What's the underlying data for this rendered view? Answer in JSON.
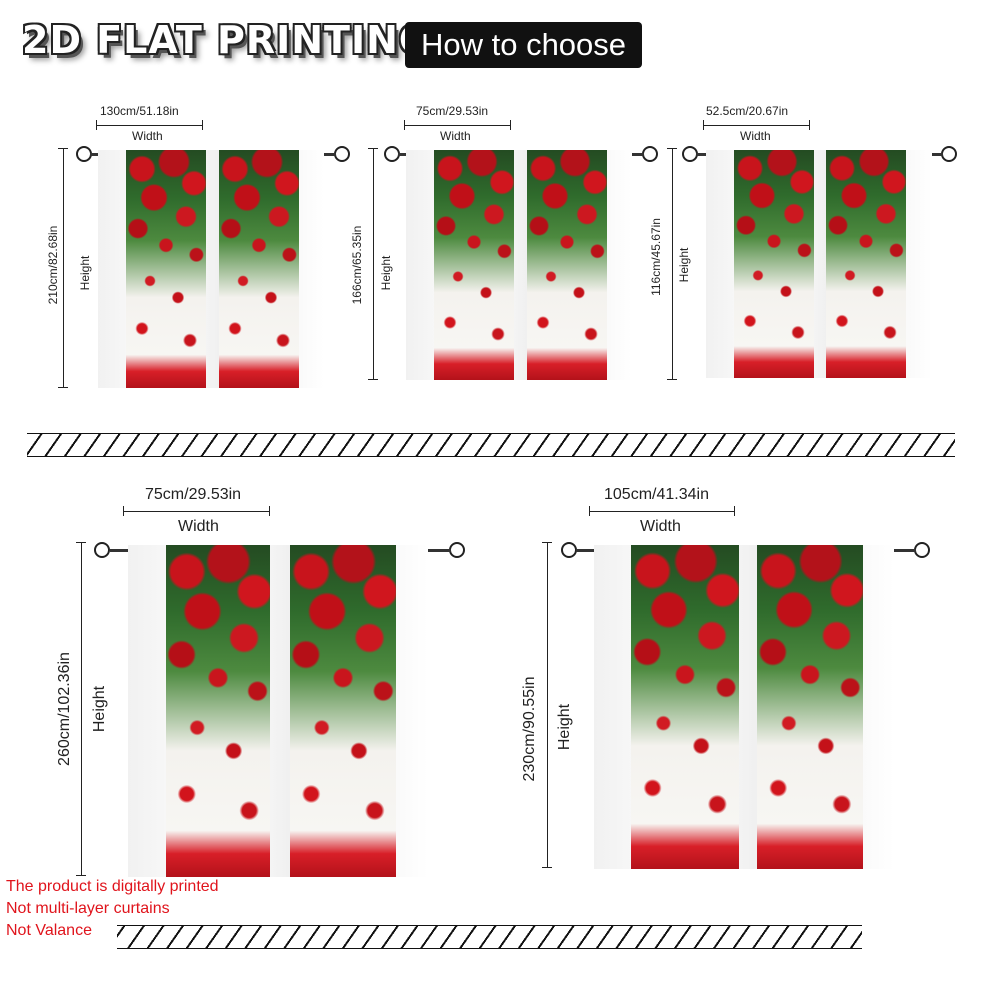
{
  "header": {
    "title": "2D FLAT PRINTING",
    "how_to_choose": "How to choose"
  },
  "units": [
    {
      "width": "130cm/51.18in",
      "width_label": "Width",
      "height": "210cm/82.68in",
      "height_label": "Height"
    },
    {
      "width": "75cm/29.53in",
      "width_label": "Width",
      "height": "166cm/65.35in",
      "height_label": "Height"
    },
    {
      "width": "52.5cm/20.67in",
      "width_label": "Width",
      "height": "116cm/45.67in",
      "height_label": "Height"
    },
    {
      "width": "75cm/29.53in",
      "width_label": "Width",
      "height": "260cm/102.36in",
      "height_label": "Height"
    },
    {
      "width": "105cm/41.34in",
      "width_label": "Width",
      "height": "230cm/90.55in",
      "height_label": "Height"
    }
  ],
  "notes": {
    "line1": "The product is digitally printed",
    "line2": "Not multi-layer curtains",
    "line3": "Not Valance"
  },
  "colors": {
    "note_red": "#e0141c",
    "rose_red": "#c8141c",
    "leaf_green": "#2f6b2c"
  }
}
